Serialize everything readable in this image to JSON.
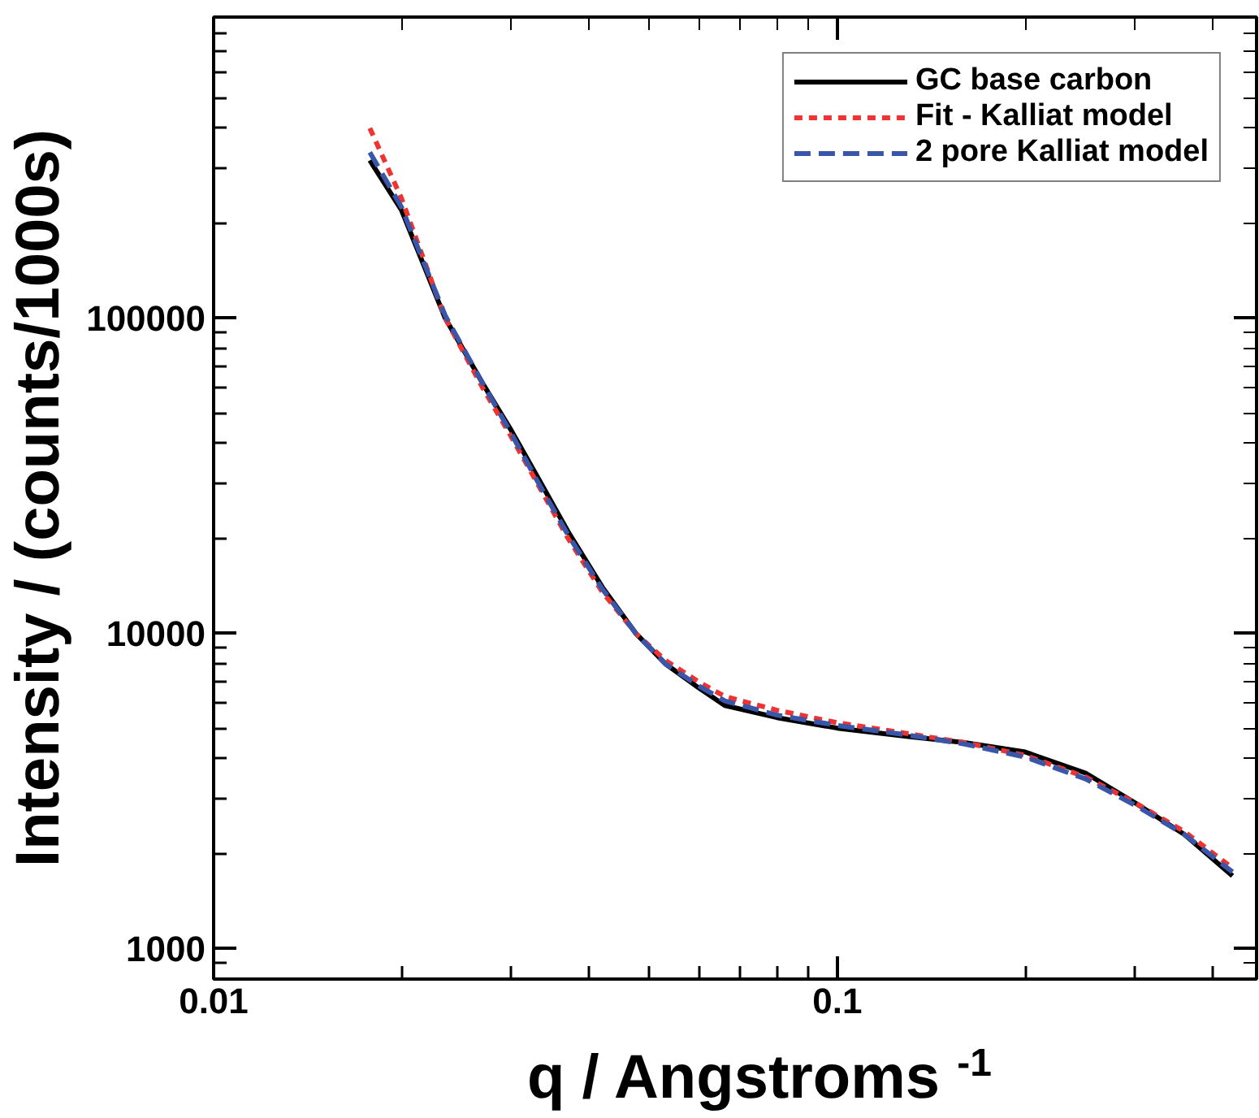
{
  "chart_data": {
    "type": "line",
    "xlabel": "q / Angstroms $^{-1}$",
    "ylabel": "Intensity / (counts/1000s)",
    "log": "xy",
    "grid": false,
    "legend": "top right",
    "xlim": [
      0.01,
      0.47
    ],
    "ylim": [
      800,
      900000
    ],
    "xticks": [
      0.01,
      0.1
    ],
    "yticks": [
      1000,
      10000,
      100000
    ],
    "series": [
      {
        "name": "GC base carbon",
        "color": "#000000",
        "line_style": "solid",
        "x": [
          0.0178,
          0.02,
          0.0235,
          0.027,
          0.03,
          0.033,
          0.037,
          0.042,
          0.0475,
          0.053,
          0.06,
          0.066,
          0.08,
          0.1,
          0.13,
          0.16,
          0.2,
          0.25,
          0.3,
          0.36,
          0.43
        ],
        "values": [
          316000,
          220000,
          100000,
          62000,
          44000,
          31500,
          21000,
          14000,
          10000,
          8000,
          6700,
          5900,
          5400,
          5000,
          4700,
          4500,
          4200,
          3600,
          2900,
          2300,
          1700
        ]
      },
      {
        "name": "Fit - Kalliat model",
        "color": "#ee3333",
        "line_style": "dashed",
        "x": [
          0.0178,
          0.02,
          0.0235,
          0.027,
          0.03,
          0.033,
          0.037,
          0.042,
          0.0475,
          0.053,
          0.06,
          0.066,
          0.08,
          0.1,
          0.13,
          0.16,
          0.2,
          0.25,
          0.3,
          0.36,
          0.43
        ],
        "values": [
          400000,
          240000,
          100000,
          60000,
          42000,
          30000,
          20000,
          13500,
          10000,
          8200,
          7000,
          6300,
          5700,
          5200,
          4800,
          4500,
          4100,
          3500,
          2900,
          2350,
          1800
        ]
      },
      {
        "name": "2 pore Kalliat model",
        "color": "#3a56a8",
        "line_style": "dashed",
        "x": [
          0.0178,
          0.02,
          0.0235,
          0.027,
          0.03,
          0.033,
          0.037,
          0.042,
          0.0475,
          0.053,
          0.06,
          0.066,
          0.08,
          0.1,
          0.13,
          0.16,
          0.2,
          0.25,
          0.3,
          0.36,
          0.43
        ],
        "values": [
          335000,
          225000,
          102000,
          62000,
          43000,
          30500,
          20500,
          13800,
          10000,
          8000,
          6800,
          6100,
          5500,
          5100,
          4750,
          4450,
          4050,
          3450,
          2850,
          2300,
          1750
        ]
      }
    ]
  }
}
